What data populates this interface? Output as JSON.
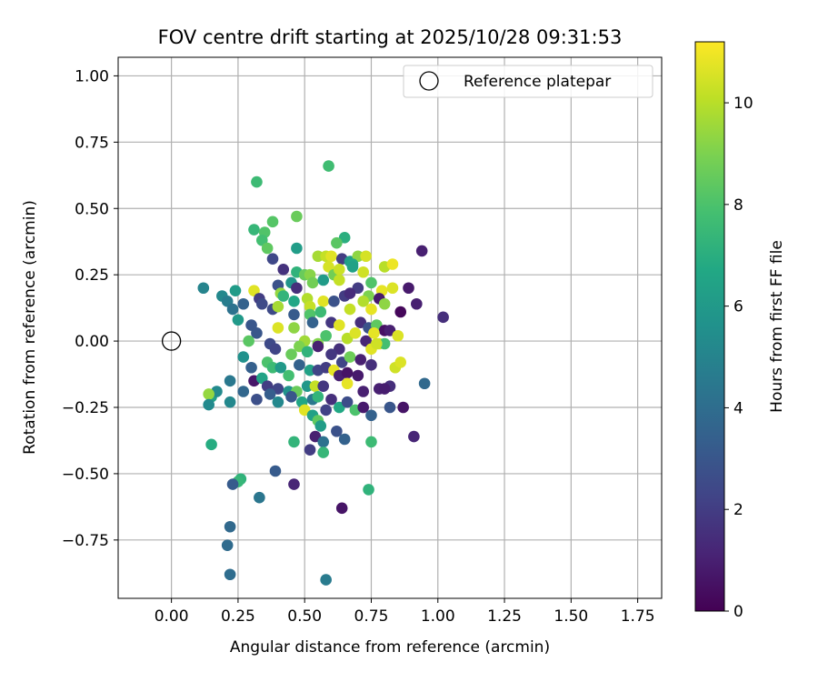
{
  "chart_data": {
    "type": "scatter",
    "title": "FOV centre drift starting at 2025/10/28 09:31:53",
    "xlabel": "Angular distance from reference (arcmin)",
    "ylabel": "Rotation from reference (arcmin)",
    "xlim": [
      -0.2,
      1.84
    ],
    "ylim": [
      -0.97,
      1.07
    ],
    "xticks": [
      0.0,
      0.25,
      0.5,
      0.75,
      1.0,
      1.25,
      1.5,
      1.75
    ],
    "xtick_labels": [
      "0.00",
      "0.25",
      "0.50",
      "0.75",
      "1.00",
      "1.25",
      "1.50",
      "1.75"
    ],
    "yticks": [
      -0.75,
      -0.5,
      -0.25,
      0.0,
      0.25,
      0.5,
      0.75,
      1.0
    ],
    "ytick_labels": [
      "−0.75",
      "−0.50",
      "−0.25",
      "0.00",
      "0.25",
      "0.50",
      "0.75",
      "1.00"
    ],
    "grid": true,
    "legend": {
      "placement": "top-right",
      "label": "Reference platepar"
    },
    "reference_point": {
      "x": 0.0,
      "y": 0.0
    },
    "colorbar": {
      "label": "Hours from first FF file",
      "min": 0,
      "max": 11.2,
      "ticks": [
        0,
        2,
        4,
        6,
        8,
        10
      ],
      "tick_labels": [
        "0",
        "2",
        "4",
        "6",
        "8",
        "10"
      ],
      "colormap": "viridis"
    },
    "points": [
      [
        0.32,
        0.6,
        7.6
      ],
      [
        0.59,
        0.66,
        7.7
      ],
      [
        0.47,
        0.47,
        8.6
      ],
      [
        0.38,
        0.45,
        8.2
      ],
      [
        0.31,
        0.42,
        7.4
      ],
      [
        0.35,
        0.41,
        8.1
      ],
      [
        0.34,
        0.38,
        7.8
      ],
      [
        0.36,
        0.35,
        8.4
      ],
      [
        0.94,
        0.34,
        1.0
      ],
      [
        0.47,
        0.35,
        6.2
      ],
      [
        0.65,
        0.39,
        7.0
      ],
      [
        0.62,
        0.37,
        8.3
      ],
      [
        0.55,
        0.32,
        9.7
      ],
      [
        0.58,
        0.32,
        10.2
      ],
      [
        0.6,
        0.32,
        10.7
      ],
      [
        0.64,
        0.31,
        2.0
      ],
      [
        0.67,
        0.3,
        6.2
      ],
      [
        0.7,
        0.32,
        9.3
      ],
      [
        0.73,
        0.32,
        10.5
      ],
      [
        0.68,
        0.29,
        6.6
      ],
      [
        0.38,
        0.31,
        2.4
      ],
      [
        0.42,
        0.27,
        1.6
      ],
      [
        0.47,
        0.26,
        7.2
      ],
      [
        0.5,
        0.25,
        8.6
      ],
      [
        0.52,
        0.25,
        9.2
      ],
      [
        0.59,
        0.28,
        10.5
      ],
      [
        0.61,
        0.25,
        8.8
      ],
      [
        0.63,
        0.27,
        10.3
      ],
      [
        0.68,
        0.28,
        6.4
      ],
      [
        0.72,
        0.26,
        10.4
      ],
      [
        0.8,
        0.28,
        10.0
      ],
      [
        0.83,
        0.29,
        10.9
      ],
      [
        0.45,
        0.22,
        5.8
      ],
      [
        0.4,
        0.21,
        2.8
      ],
      [
        0.47,
        0.2,
        1.5
      ],
      [
        0.53,
        0.22,
        8.8
      ],
      [
        0.57,
        0.23,
        6.1
      ],
      [
        0.63,
        0.23,
        10.2
      ],
      [
        0.7,
        0.2,
        2.0
      ],
      [
        0.74,
        0.17,
        9.0
      ],
      [
        0.75,
        0.22,
        8.1
      ],
      [
        0.79,
        0.19,
        10.8
      ],
      [
        0.83,
        0.2,
        10.6
      ],
      [
        0.89,
        0.2,
        0.8
      ],
      [
        0.92,
        0.14,
        1.0
      ],
      [
        1.02,
        0.09,
        1.5
      ],
      [
        0.12,
        0.2,
        5.0
      ],
      [
        0.19,
        0.17,
        5.2
      ],
      [
        0.24,
        0.19,
        6.1
      ],
      [
        0.21,
        0.15,
        4.7
      ],
      [
        0.23,
        0.12,
        4.2
      ],
      [
        0.27,
        0.14,
        3.5
      ],
      [
        0.31,
        0.19,
        10.7
      ],
      [
        0.33,
        0.16,
        2.0
      ],
      [
        0.34,
        0.14,
        2.5
      ],
      [
        0.41,
        0.18,
        9.4
      ],
      [
        0.42,
        0.17,
        7.3
      ],
      [
        0.46,
        0.15,
        6.6
      ],
      [
        0.51,
        0.16,
        9.9
      ],
      [
        0.52,
        0.13,
        10.2
      ],
      [
        0.57,
        0.15,
        10.7
      ],
      [
        0.61,
        0.15,
        2.8
      ],
      [
        0.65,
        0.17,
        2.0
      ],
      [
        0.67,
        0.18,
        1.4
      ],
      [
        0.72,
        0.15,
        9.9
      ],
      [
        0.75,
        0.12,
        10.8
      ],
      [
        0.78,
        0.16,
        0.8
      ],
      [
        0.8,
        0.14,
        9.3
      ],
      [
        0.86,
        0.11,
        0.2
      ],
      [
        0.25,
        0.08,
        6.0
      ],
      [
        0.3,
        0.06,
        3.0
      ],
      [
        0.32,
        0.03,
        3.0
      ],
      [
        0.38,
        0.12,
        2.5
      ],
      [
        0.4,
        0.13,
        9.7
      ],
      [
        0.46,
        0.1,
        3.2
      ],
      [
        0.52,
        0.1,
        8.1
      ],
      [
        0.53,
        0.07,
        3.5
      ],
      [
        0.56,
        0.11,
        7.6
      ],
      [
        0.6,
        0.07,
        1.8
      ],
      [
        0.63,
        0.06,
        10.7
      ],
      [
        0.67,
        0.12,
        10.2
      ],
      [
        0.71,
        0.07,
        1.5
      ],
      [
        0.74,
        0.05,
        2.8
      ],
      [
        0.77,
        0.06,
        8.4
      ],
      [
        0.8,
        0.04,
        0.5
      ],
      [
        0.82,
        0.04,
        1.0
      ],
      [
        0.85,
        0.02,
        10.6
      ],
      [
        0.4,
        0.05,
        10.6
      ],
      [
        0.46,
        0.05,
        9.3
      ],
      [
        0.5,
        0.0,
        9.6
      ],
      [
        0.55,
        -0.01,
        9.1
      ],
      [
        0.58,
        0.02,
        8.0
      ],
      [
        0.63,
        -0.03,
        1.5
      ],
      [
        0.66,
        0.01,
        10.0
      ],
      [
        0.69,
        0.03,
        10.6
      ],
      [
        0.73,
        0.0,
        1.2
      ],
      [
        0.76,
        0.03,
        10.8
      ],
      [
        0.78,
        -0.01,
        10.6
      ],
      [
        0.8,
        -0.01,
        7.8
      ],
      [
        0.29,
        0.0,
        8.3
      ],
      [
        0.37,
        -0.01,
        2.5
      ],
      [
        0.39,
        -0.03,
        2.3
      ],
      [
        0.45,
        -0.05,
        8.6
      ],
      [
        0.48,
        -0.02,
        9.0
      ],
      [
        0.51,
        -0.04,
        7.2
      ],
      [
        0.55,
        -0.02,
        1.0
      ],
      [
        0.6,
        -0.05,
        1.8
      ],
      [
        0.64,
        -0.08,
        2.3
      ],
      [
        0.67,
        -0.06,
        8.7
      ],
      [
        0.71,
        -0.07,
        1.0
      ],
      [
        0.75,
        -0.03,
        10.7
      ],
      [
        0.77,
        -0.01,
        10.4
      ],
      [
        0.84,
        -0.1,
        10.4
      ],
      [
        0.86,
        -0.08,
        10.6
      ],
      [
        0.27,
        -0.06,
        5.6
      ],
      [
        0.3,
        -0.1,
        3.4
      ],
      [
        0.36,
        -0.08,
        8.0
      ],
      [
        0.38,
        -0.1,
        7.6
      ],
      [
        0.41,
        -0.1,
        6.0
      ],
      [
        0.44,
        -0.13,
        7.8
      ],
      [
        0.48,
        -0.09,
        3.5
      ],
      [
        0.52,
        -0.11,
        6.4
      ],
      [
        0.55,
        -0.11,
        2.3
      ],
      [
        0.58,
        -0.1,
        2.0
      ],
      [
        0.61,
        -0.11,
        10.8
      ],
      [
        0.63,
        -0.13,
        1.0
      ],
      [
        0.66,
        -0.12,
        0.6
      ],
      [
        0.7,
        -0.13,
        0.8
      ],
      [
        0.75,
        -0.09,
        1.5
      ],
      [
        0.78,
        -0.18,
        1.0
      ],
      [
        0.82,
        -0.17,
        1.5
      ],
      [
        0.22,
        -0.15,
        4.5
      ],
      [
        0.31,
        -0.15,
        0.7
      ],
      [
        0.34,
        -0.14,
        6.5
      ],
      [
        0.36,
        -0.17,
        2.0
      ],
      [
        0.4,
        -0.18,
        2.3
      ],
      [
        0.44,
        -0.19,
        5.7
      ],
      [
        0.47,
        -0.19,
        8.6
      ],
      [
        0.51,
        -0.17,
        5.9
      ],
      [
        0.54,
        -0.17,
        10.2
      ],
      [
        0.57,
        -0.17,
        1.8
      ],
      [
        0.6,
        -0.22,
        1.5
      ],
      [
        0.66,
        -0.16,
        10.8
      ],
      [
        0.72,
        -0.19,
        1.0
      ],
      [
        0.8,
        -0.18,
        0.9
      ],
      [
        0.15,
        -0.21,
        6.4
      ],
      [
        0.17,
        -0.19,
        5.3
      ],
      [
        0.14,
        -0.2,
        9.4
      ],
      [
        0.14,
        -0.24,
        5.3
      ],
      [
        0.22,
        -0.23,
        5.2
      ],
      [
        0.27,
        -0.19,
        3.7
      ],
      [
        0.32,
        -0.22,
        2.7
      ],
      [
        0.37,
        -0.2,
        3.3
      ],
      [
        0.4,
        -0.23,
        5.2
      ],
      [
        0.45,
        -0.21,
        3.0
      ],
      [
        0.49,
        -0.23,
        6.6
      ],
      [
        0.53,
        -0.22,
        4.5
      ],
      [
        0.55,
        -0.21,
        7.3
      ],
      [
        0.58,
        -0.26,
        2.2
      ],
      [
        0.63,
        -0.25,
        6.7
      ],
      [
        0.66,
        -0.23,
        2.6
      ],
      [
        0.69,
        -0.26,
        8.0
      ],
      [
        0.72,
        -0.25,
        0.8
      ],
      [
        0.75,
        -0.28,
        3.5
      ],
      [
        0.82,
        -0.25,
        3.0
      ],
      [
        0.87,
        -0.25,
        0.6
      ],
      [
        0.95,
        -0.16,
        3.8
      ],
      [
        0.5,
        -0.26,
        10.7
      ],
      [
        0.53,
        -0.28,
        6.4
      ],
      [
        0.55,
        -0.3,
        8.4
      ],
      [
        0.56,
        -0.32,
        6.2
      ],
      [
        0.54,
        -0.36,
        1.0
      ],
      [
        0.57,
        -0.38,
        4.2
      ],
      [
        0.62,
        -0.34,
        2.8
      ],
      [
        0.65,
        -0.37,
        3.5
      ],
      [
        0.91,
        -0.36,
        1.2
      ],
      [
        0.46,
        -0.38,
        7.3
      ],
      [
        0.52,
        -0.41,
        2.0
      ],
      [
        0.57,
        -0.42,
        7.4
      ],
      [
        0.75,
        -0.38,
        7.6
      ],
      [
        0.15,
        -0.39,
        6.9
      ],
      [
        0.26,
        -0.52,
        7.2
      ],
      [
        0.25,
        -0.53,
        7.4
      ],
      [
        0.23,
        -0.54,
        3.2
      ],
      [
        0.39,
        -0.49,
        3.2
      ],
      [
        0.46,
        -0.54,
        1.2
      ],
      [
        0.33,
        -0.59,
        4.4
      ],
      [
        0.64,
        -0.63,
        0.6
      ],
      [
        0.74,
        -0.56,
        7.2
      ],
      [
        0.22,
        -0.7,
        3.8
      ],
      [
        0.21,
        -0.77,
        3.9
      ],
      [
        0.22,
        -0.88,
        4.0
      ],
      [
        0.58,
        -0.9,
        4.6
      ]
    ]
  }
}
